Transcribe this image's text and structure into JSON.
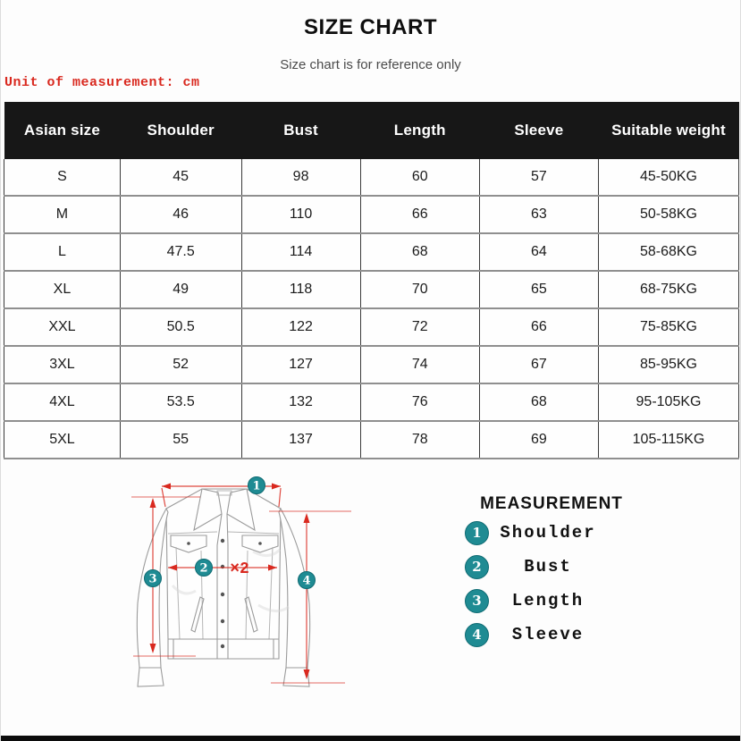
{
  "page": {
    "title": "SIZE CHART",
    "subtitle": "Size chart is for reference only",
    "unit_note": "Unit of measurement: cm"
  },
  "table": {
    "columns": [
      "Asian size",
      "Shoulder",
      "Bust",
      "Length",
      "Sleeve",
      "Suitable weight"
    ],
    "rows": [
      [
        "S",
        "45",
        "98",
        "60",
        "57",
        "45-50KG"
      ],
      [
        "M",
        "46",
        "110",
        "66",
        "63",
        "50-58KG"
      ],
      [
        "L",
        "47.5",
        "114",
        "68",
        "64",
        "58-68KG"
      ],
      [
        "XL",
        "49",
        "118",
        "70",
        "65",
        "68-75KG"
      ],
      [
        "XXL",
        "50.5",
        "122",
        "72",
        "66",
        "75-85KG"
      ],
      [
        "3XL",
        "52",
        "127",
        "74",
        "67",
        "85-95KG"
      ],
      [
        "4XL",
        "53.5",
        "132",
        "76",
        "68",
        "95-105KG"
      ],
      [
        "5XL",
        "55",
        "137",
        "78",
        "69",
        "105-115KG"
      ]
    ]
  },
  "diagram": {
    "markers": [
      "1",
      "2",
      "3",
      "4"
    ],
    "multiplier_label": "×2"
  },
  "legend": {
    "heading": "MEASUREMENT",
    "items": [
      {
        "number": "1",
        "label": "Shoulder"
      },
      {
        "number": "2",
        "label": "Bust"
      },
      {
        "number": "3",
        "label": "Length"
      },
      {
        "number": "4",
        "label": "Sleeve"
      }
    ]
  },
  "colors": {
    "accent_teal": "#1f8b93",
    "accent_red": "#d9291f",
    "header_bg": "#171717"
  }
}
